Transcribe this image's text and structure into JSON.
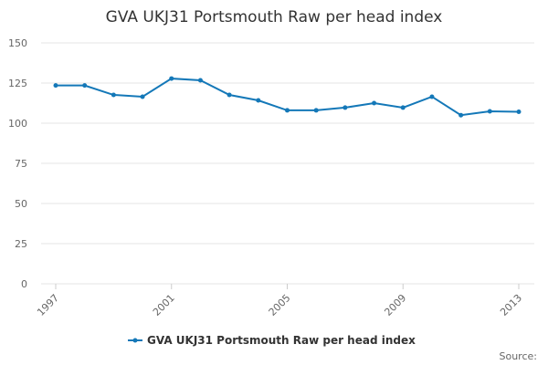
{
  "chart_data": {
    "type": "line",
    "title": "GVA UKJ31 Portsmouth Raw per head index",
    "x": [
      1997,
      1998,
      1999,
      2000,
      2001,
      2002,
      2003,
      2004,
      2005,
      2006,
      2007,
      2008,
      2009,
      2010,
      2011,
      2012,
      2013
    ],
    "series": [
      {
        "name": "GVA UKJ31 Portsmouth Raw per head index",
        "color": "#1478b8",
        "values": [
          123.5,
          123.5,
          117.6,
          116.5,
          127.8,
          126.7,
          117.6,
          114.2,
          108,
          108,
          109.7,
          112.5,
          109.7,
          116.5,
          105,
          107.4,
          107.1
        ]
      }
    ],
    "xlim": [
      1997,
      2013
    ],
    "xticks": [
      1997,
      2001,
      2005,
      2009,
      2013
    ],
    "ylim": [
      0,
      150
    ],
    "yticks": [
      0,
      25,
      50,
      75,
      100,
      125,
      150
    ],
    "grid": true,
    "source": "Source:"
  }
}
